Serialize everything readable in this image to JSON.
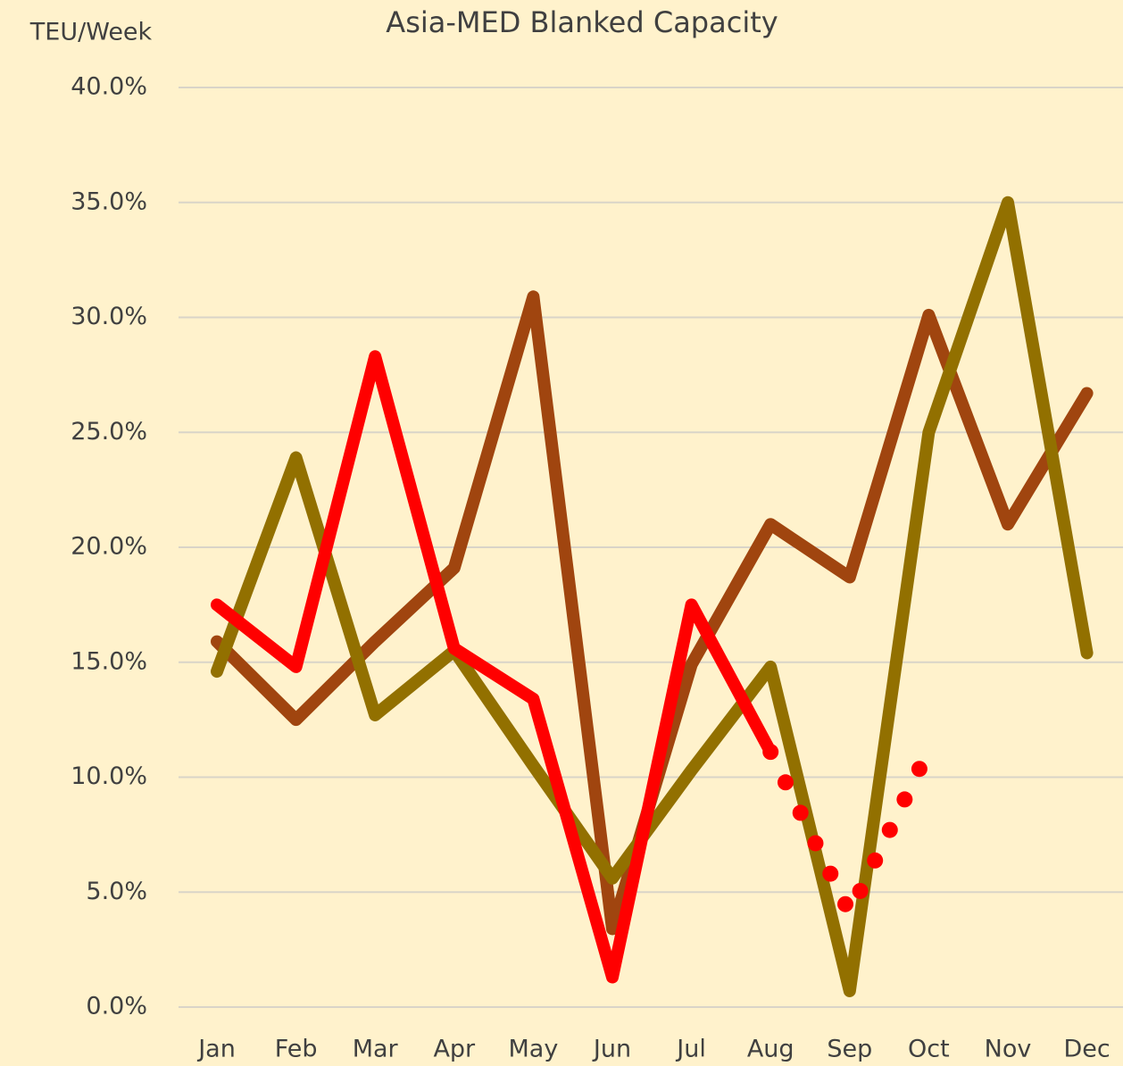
{
  "chart_data": {
    "type": "line",
    "title": "Asia-MED Blanked Capacity",
    "y_label": "TEU/Week",
    "categories": [
      "Jan",
      "Feb",
      "Mar",
      "Apr",
      "May",
      "Jun",
      "Jul",
      "Aug",
      "Sep",
      "Oct",
      "Nov",
      "Dec"
    ],
    "series": [
      {
        "color": "#a0450f",
        "values": [
          15.9,
          12.5,
          15.9,
          19.1,
          30.9,
          3.4,
          14.9,
          21.0,
          18.7,
          30.1,
          21.0,
          26.7
        ]
      },
      {
        "color": "#927000",
        "values": [
          14.6,
          23.9,
          12.7,
          15.5,
          10.5,
          5.6,
          10.3,
          14.8,
          0.7,
          25.0,
          35.0,
          15.4
        ]
      },
      {
        "color": "#ff0000",
        "values": [
          17.5,
          14.8,
          28.3,
          15.6,
          13.4,
          1.3,
          17.5,
          11.1,
          null,
          null,
          null,
          null
        ]
      },
      {
        "color": "#ff0000",
        "style": "dotted",
        "values": [
          null,
          null,
          null,
          null,
          null,
          null,
          null,
          11.1,
          4.1,
          11.2,
          null,
          null
        ]
      }
    ],
    "ylim": [
      0,
      40
    ],
    "yticks": [
      {
        "value": 0,
        "label": "0.0%"
      },
      {
        "value": 5,
        "label": "5.0%"
      },
      {
        "value": 10,
        "label": "10.0%"
      },
      {
        "value": 15,
        "label": "15.0%"
      },
      {
        "value": 20,
        "label": "20.0%"
      },
      {
        "value": 25,
        "label": "25.0%"
      },
      {
        "value": 30,
        "label": "30.0%"
      },
      {
        "value": 35,
        "label": "35.0%"
      },
      {
        "value": 40,
        "label": "40.0%"
      }
    ],
    "grid": true
  }
}
